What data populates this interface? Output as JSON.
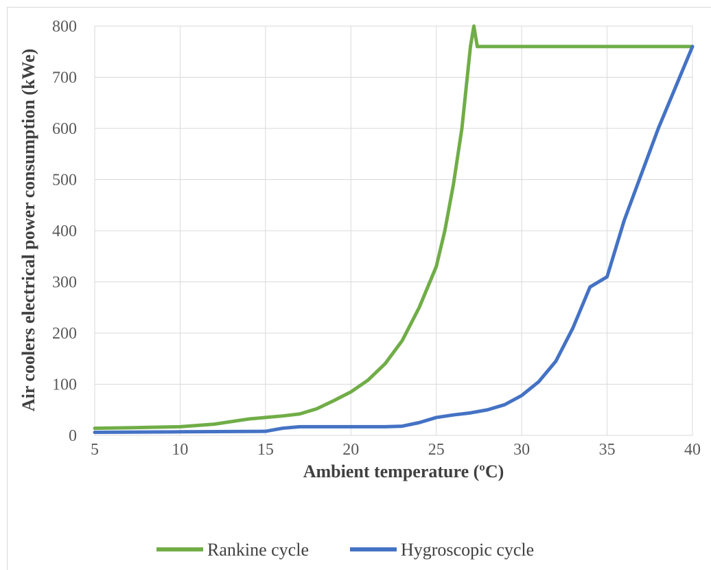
{
  "chart_data": {
    "type": "line",
    "xlabel": "Ambient temperature (ºC)",
    "ylabel": "Air coolers electrical power consumption (kWe)",
    "xlim": [
      5,
      40
    ],
    "ylim": [
      0,
      800
    ],
    "xticks": [
      5,
      10,
      15,
      20,
      25,
      30,
      35,
      40
    ],
    "yticks": [
      0,
      100,
      200,
      300,
      400,
      500,
      600,
      700,
      800
    ],
    "grid": true,
    "legend_position": "bottom",
    "series": [
      {
        "name": "Rankine cycle",
        "color": "#70ad47",
        "x": [
          5,
          7,
          10,
          12,
          14,
          15,
          16,
          17,
          18,
          19,
          20,
          21,
          22,
          23,
          24,
          25,
          25.5,
          26,
          26.5,
          27,
          27.2,
          27.4,
          28,
          30,
          35,
          40
        ],
        "y": [
          14,
          15,
          17,
          22,
          32,
          35,
          38,
          42,
          52,
          68,
          85,
          108,
          140,
          185,
          250,
          330,
          400,
          490,
          600,
          760,
          800,
          760,
          760,
          760,
          760,
          760
        ]
      },
      {
        "name": "Hygroscopic cycle",
        "color": "#4472c4",
        "x": [
          5,
          10,
          15,
          16,
          17,
          18,
          20,
          22,
          23,
          24,
          25,
          26,
          27,
          28,
          29,
          30,
          31,
          32,
          33,
          34,
          35,
          36,
          37,
          38,
          39,
          40
        ],
        "y": [
          6,
          7,
          8,
          14,
          17,
          17,
          17,
          17,
          18,
          25,
          35,
          40,
          44,
          50,
          60,
          78,
          105,
          145,
          210,
          290,
          310,
          420,
          510,
          600,
          680,
          760
        ]
      }
    ]
  }
}
